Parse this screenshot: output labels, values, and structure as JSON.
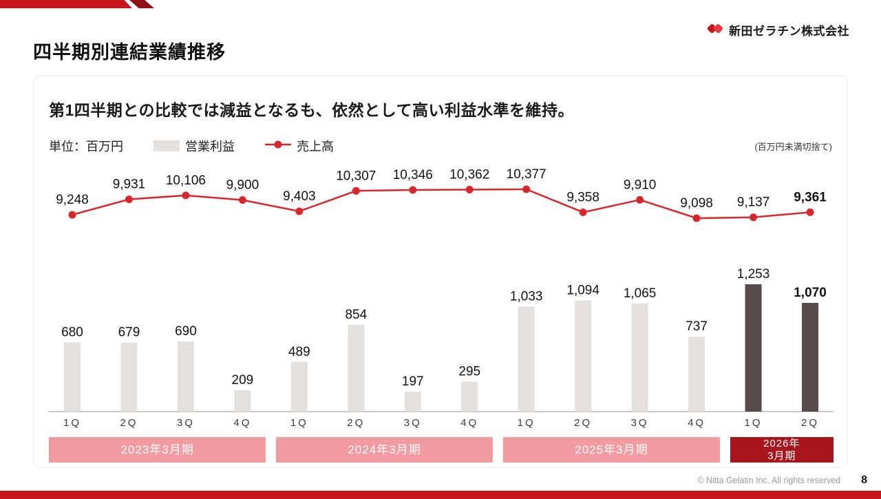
{
  "header": {
    "title": "四半期別連結業績推移",
    "company": "新田ゼラチン株式会社"
  },
  "colors": {
    "accent_red": "#c8161d",
    "line_red": "#d7262c",
    "bar_gray": "#e6e0dd",
    "bar_dark": "#574c4c",
    "band_pink": "#f29ca1",
    "band_dark_red": "#a8151c"
  },
  "card": {
    "headline": "第1四半期との比較では減益となるも、依然として高い利益水準を維持。",
    "unit_label": "単位：百万円",
    "legend": [
      {
        "label": "営業利益",
        "type": "bar"
      },
      {
        "label": "売上高",
        "type": "line"
      }
    ],
    "note": "(百万円未満切捨て)"
  },
  "chart_data": {
    "type": "bar",
    "subtype": "combo-bar-line",
    "categories": [
      "1Q",
      "2Q",
      "3Q",
      "4Q",
      "1Q",
      "2Q",
      "3Q",
      "4Q",
      "1Q",
      "2Q",
      "3Q",
      "4Q",
      "1Q",
      "2Q"
    ],
    "periods": [
      {
        "label": "2023年3月期",
        "quarters": 4,
        "color": "#f29ca1",
        "text_color": "#ffffff"
      },
      {
        "label": "2024年3月期",
        "quarters": 4,
        "color": "#f29ca1",
        "text_color": "#ffffff"
      },
      {
        "label": "2025年3月期",
        "quarters": 4,
        "color": "#f29ca1",
        "text_color": "#ffffff"
      },
      {
        "label": "2026年\n3月期",
        "quarters": 2,
        "color": "#a8151c",
        "text_color": "#ffffff"
      }
    ],
    "series": [
      {
        "name": "売上高",
        "type": "line",
        "color": "#d7262c",
        "values": [
          9248,
          9931,
          10106,
          9900,
          9403,
          10307,
          10346,
          10362,
          10377,
          9358,
          9910,
          9098,
          9137,
          9361
        ]
      },
      {
        "name": "営業利益",
        "type": "bar",
        "color": "#e6e0dd",
        "emphasis_color": "#574c4c",
        "emphasis_from": 12,
        "values": [
          680,
          679,
          690,
          209,
          489,
          854,
          197,
          295,
          1033,
          1094,
          1065,
          737,
          1253,
          1070
        ]
      }
    ],
    "bold_last": true,
    "unit": "百万円",
    "title": "四半期別連結業績推移",
    "xlabel": "",
    "ylabel": "",
    "grid": false,
    "legend_position": "top"
  },
  "footer": {
    "copyright": "© Nitta Gelatin Inc. All rights reserved",
    "page": "8"
  }
}
